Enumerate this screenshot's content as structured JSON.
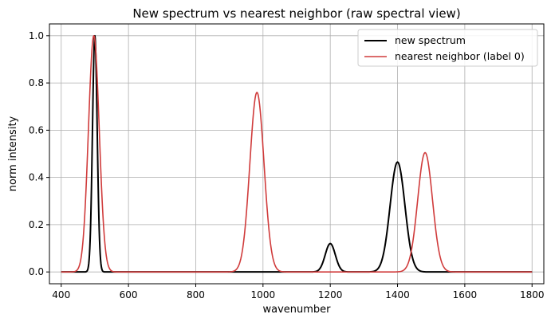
{
  "chart_data": {
    "type": "line",
    "title": "New spectrum vs nearest neighbor (raw spectral view)",
    "xlabel": "wavenumber",
    "ylabel": "norm intensity",
    "xlim": [
      365,
      1835
    ],
    "ylim": [
      -0.05,
      1.05
    ],
    "xticks": [
      400,
      600,
      800,
      1000,
      1200,
      1400,
      1600,
      1800
    ],
    "yticks": [
      0.0,
      0.2,
      0.4,
      0.6,
      0.8,
      1.0
    ],
    "xtick_labels": [
      "400",
      "600",
      "800",
      "1000",
      "1200",
      "1400",
      "1600",
      "1800"
    ],
    "ytick_labels": [
      "0.0",
      "0.2",
      "0.4",
      "0.6",
      "0.8",
      "1.0"
    ],
    "grid": true,
    "legend_position": "top-right",
    "x_range": [
      400,
      1800
    ],
    "series": [
      {
        "name": "new spectrum",
        "color": "#000000",
        "peaks": [
          {
            "center": 500,
            "amplitude": 1.0,
            "sigma": 7
          },
          {
            "center": 1200,
            "amplitude": 0.12,
            "sigma": 15
          },
          {
            "center": 1400,
            "amplitude": 0.465,
            "sigma": 22
          }
        ]
      },
      {
        "name": "nearest neighbor (label 0)",
        "color": "#d03b3b",
        "peaks": [
          {
            "center": 497,
            "amplitude": 1.0,
            "sigma": 16
          },
          {
            "center": 982,
            "amplitude": 0.76,
            "sigma": 21
          },
          {
            "center": 1482,
            "amplitude": 0.505,
            "sigma": 22
          }
        ]
      }
    ]
  }
}
